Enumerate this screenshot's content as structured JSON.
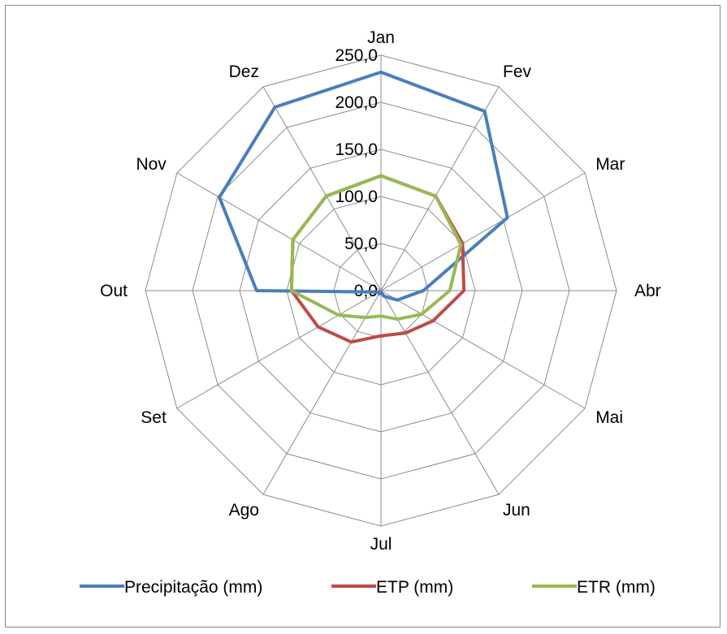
{
  "chart_data": {
    "type": "radar",
    "categories": [
      "Jan",
      "Fev",
      "Mar",
      "Abr",
      "Mai",
      "Jun",
      "Jul",
      "Ago",
      "Set",
      "Out",
      "Nov",
      "Dez"
    ],
    "rlim": [
      0,
      250
    ],
    "ticks": [
      0,
      50,
      100,
      150,
      200,
      250
    ],
    "tick_labels": [
      "0,0",
      "50,0",
      "100,0",
      "150,0",
      "200,0",
      "250,0"
    ],
    "grid": true,
    "legend_position": "bottom",
    "series": [
      {
        "name": "Precipitação (mm)",
        "color": "#4a7ebb",
        "values": [
          232,
          220,
          155,
          45,
          20,
          7,
          2,
          4,
          3,
          132,
          198,
          225
        ]
      },
      {
        "name": "ETP (mm)",
        "color": "#be4b48",
        "values": [
          122,
          116,
          100,
          88,
          64,
          52,
          48,
          63,
          77,
          95,
          108,
          116
        ]
      },
      {
        "name": "ETR (mm)",
        "color": "#98b954",
        "values": [
          122,
          116,
          98,
          73,
          50,
          35,
          27,
          33,
          52,
          95,
          108,
          116
        ]
      }
    ]
  }
}
